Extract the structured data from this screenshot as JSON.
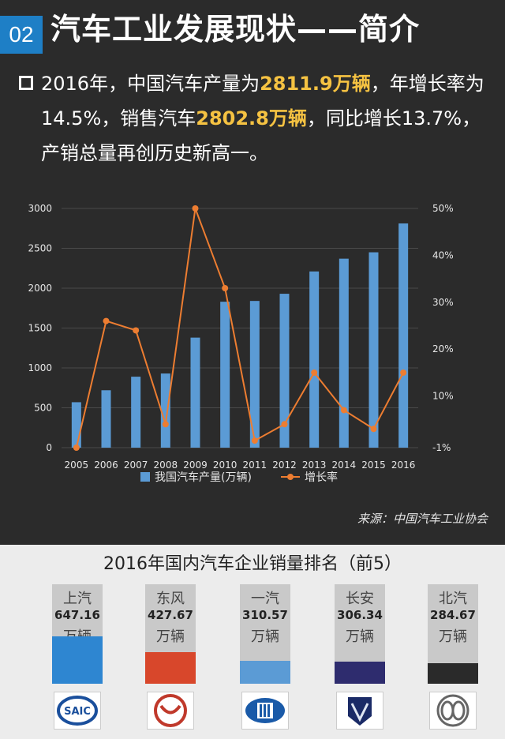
{
  "header": {
    "badge": "02",
    "title": "汽车工业发展现状——简介"
  },
  "para": {
    "p1": "2016年，中国汽车产量为",
    "h1": "2811.9万辆",
    "p2": "，年增长率为14.5%，销售汽车",
    "h2": "2802.8万辆",
    "p3": "，同比增长13.7%，产销总量再创历史新高一。"
  },
  "colors": {
    "bar": "#5b9bd5",
    "line": "#ed7d31",
    "badge": "#1e7fc6",
    "highlight": "#f5c242"
  },
  "chart_data": {
    "type": "bar",
    "categories": [
      "2005",
      "2006",
      "2007",
      "2008",
      "2009",
      "2010",
      "2011",
      "2012",
      "2013",
      "2014",
      "2015",
      "2016"
    ],
    "series": [
      {
        "name": "我国汽车产量(万辆)",
        "type": "bar",
        "axis": "left",
        "values": [
          570,
          720,
          890,
          930,
          1380,
          1830,
          1840,
          1930,
          2210,
          2370,
          2450,
          2812
        ]
      },
      {
        "name": "增长率",
        "type": "line",
        "axis": "right",
        "values": [
          -1,
          26,
          24,
          4,
          50,
          33,
          0.5,
          4,
          15,
          7,
          3,
          15
        ]
      }
    ],
    "ylim_left": [
      0,
      3000
    ],
    "yticks_left": [
      "0",
      "500",
      "1000",
      "1500",
      "2000",
      "2500",
      "3000"
    ],
    "ylim_right": [
      -1,
      50
    ],
    "yticks_right": [
      "-1%",
      "10%",
      "20%",
      "30%",
      "40%",
      "50%"
    ],
    "legend_position": "bottom",
    "grid": true
  },
  "source": "来源：中国汽车工业协会",
  "ranking": {
    "title": "2016年国内汽车企业销量排名（前5）",
    "unit": "万辆",
    "items": [
      {
        "name": "上汽",
        "value": "647.16",
        "share": 1.0,
        "color": "#2e86d1",
        "logo": "SAIC"
      },
      {
        "name": "东风",
        "value": "427.67",
        "share": 0.66,
        "color": "#d8472b",
        "logo": ""
      },
      {
        "name": "一汽",
        "value": "310.57",
        "share": 0.48,
        "color": "#5b9bd5",
        "logo": ""
      },
      {
        "name": "长安",
        "value": "306.34",
        "share": 0.47,
        "color": "#2e2c6e",
        "logo": ""
      },
      {
        "name": "北汽",
        "value": "284.67",
        "share": 0.44,
        "color": "#2a2a2a",
        "logo": ""
      }
    ]
  }
}
